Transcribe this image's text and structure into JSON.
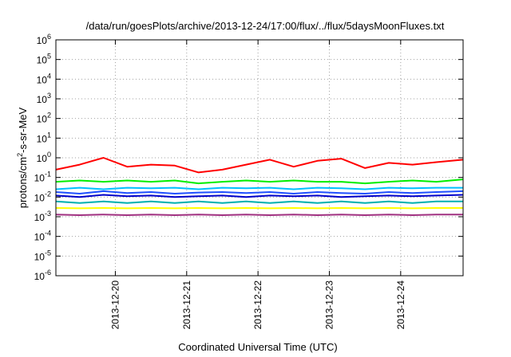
{
  "chart_data": {
    "type": "line",
    "title": "/data/run/goesPlots/archive/2013-12-24/17:00/flux/../flux/5daysMoonFluxes.txt",
    "xlabel": "Coordinated Universal Time (UTC)",
    "ylabel": {
      "pre": "protons/cm",
      "sup": "2",
      "post": "-s-sr-MeV"
    },
    "xlim": [
      "2013-12-19T04:00",
      "2013-12-24T21:00"
    ],
    "xticks": [
      "2013-12-20",
      "2013-12-21",
      "2013-12-22",
      "2013-12-23",
      "2013-12-24"
    ],
    "yscale": "log",
    "ylim": [
      1e-06,
      1000000.0
    ],
    "yticks": [
      {
        "base": "10",
        "exp": "-6"
      },
      {
        "base": "10",
        "exp": "-5"
      },
      {
        "base": "10",
        "exp": "-4"
      },
      {
        "base": "10",
        "exp": "-3"
      },
      {
        "base": "10",
        "exp": "-2"
      },
      {
        "base": "10",
        "exp": "-1"
      },
      {
        "base": "10",
        "exp": "0"
      },
      {
        "base": "10",
        "exp": "1"
      },
      {
        "base": "10",
        "exp": "2"
      },
      {
        "base": "10",
        "exp": "3"
      },
      {
        "base": "10",
        "exp": "4"
      },
      {
        "base": "10",
        "exp": "5"
      },
      {
        "base": "10",
        "exp": "6"
      }
    ],
    "grid": true,
    "x_dates": [
      "2013-12-19T04:00",
      "2013-12-19T12:00",
      "2013-12-19T20:00",
      "2013-12-20T04:00",
      "2013-12-20T12:00",
      "2013-12-20T20:00",
      "2013-12-21T04:00",
      "2013-12-21T12:00",
      "2013-12-21T20:00",
      "2013-12-22T04:00",
      "2013-12-22T12:00",
      "2013-12-22T20:00",
      "2013-12-23T04:00",
      "2013-12-23T12:00",
      "2013-12-23T20:00",
      "2013-12-24T04:00",
      "2013-12-24T12:00",
      "2013-12-24T21:00"
    ],
    "series": [
      {
        "color": "#ff0000",
        "values": [
          0.25,
          0.45,
          1.0,
          0.35,
          0.45,
          0.4,
          0.18,
          0.25,
          0.45,
          0.8,
          0.35,
          0.7,
          0.9,
          0.3,
          0.55,
          0.45,
          0.6,
          0.8
        ]
      },
      {
        "color": "#00ee00",
        "values": [
          0.06,
          0.07,
          0.06,
          0.07,
          0.06,
          0.07,
          0.05,
          0.06,
          0.07,
          0.06,
          0.07,
          0.06,
          0.06,
          0.05,
          0.06,
          0.07,
          0.06,
          0.08
        ]
      },
      {
        "color": "#00c0ff",
        "values": [
          0.025,
          0.03,
          0.025,
          0.03,
          0.028,
          0.03,
          0.025,
          0.03,
          0.028,
          0.03,
          0.025,
          0.03,
          0.028,
          0.025,
          0.03,
          0.028,
          0.03,
          0.03
        ]
      },
      {
        "color": "#2050ff",
        "values": [
          0.018,
          0.015,
          0.02,
          0.016,
          0.018,
          0.015,
          0.017,
          0.018,
          0.016,
          0.018,
          0.015,
          0.018,
          0.016,
          0.015,
          0.018,
          0.016,
          0.018,
          0.02
        ]
      },
      {
        "color": "#0000c8",
        "values": [
          0.012,
          0.01,
          0.013,
          0.011,
          0.012,
          0.01,
          0.011,
          0.012,
          0.01,
          0.012,
          0.011,
          0.012,
          0.01,
          0.011,
          0.012,
          0.011,
          0.012,
          0.013
        ]
      },
      {
        "color": "#00b0b0",
        "values": [
          0.006,
          0.005,
          0.006,
          0.005,
          0.006,
          0.005,
          0.006,
          0.005,
          0.006,
          0.005,
          0.006,
          0.005,
          0.006,
          0.005,
          0.006,
          0.005,
          0.006,
          0.006
        ]
      },
      {
        "color": "#ffff00",
        "values": [
          0.0028,
          0.0027,
          0.0028,
          0.0027,
          0.0028,
          0.0027,
          0.0028,
          0.0027,
          0.0028,
          0.0027,
          0.0028,
          0.0027,
          0.0028,
          0.0027,
          0.0028,
          0.0027,
          0.0028,
          0.0028
        ]
      },
      {
        "color": "#a03080",
        "values": [
          0.0013,
          0.0012,
          0.0013,
          0.0012,
          0.0013,
          0.0012,
          0.0013,
          0.0012,
          0.0013,
          0.0012,
          0.0013,
          0.0012,
          0.0013,
          0.0012,
          0.0013,
          0.0012,
          0.0013,
          0.0013
        ]
      }
    ]
  }
}
